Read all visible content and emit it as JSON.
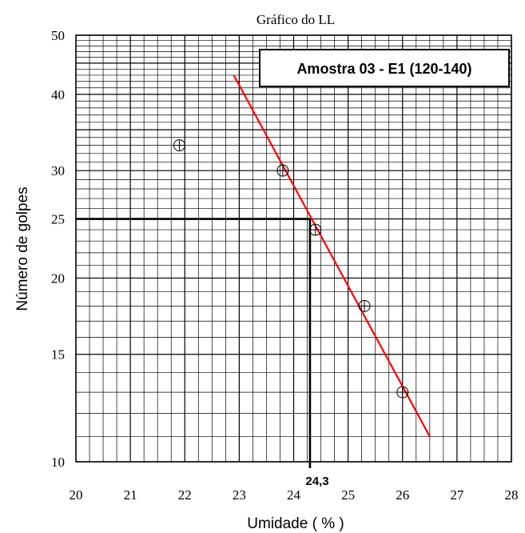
{
  "chart_data": {
    "type": "scatter",
    "title": "Gráfico do LL",
    "xlabel": "Umidade ( % )",
    "ylabel": "Número de golpes",
    "xlim": [
      20,
      28
    ],
    "ylim": [
      10,
      50
    ],
    "yscale": "log",
    "x_ticks": [
      "20",
      "21",
      "22",
      "23",
      "24",
      "25",
      "26",
      "27",
      "28"
    ],
    "y_ticks": [
      "10",
      "15",
      "20",
      "25",
      "30",
      "40",
      "50"
    ],
    "grid": true,
    "series": [
      {
        "name": "Amostra 03 - E1 (120-140)",
        "marker": "circle-cross",
        "points": [
          {
            "x": 21.9,
            "y": 33
          },
          {
            "x": 23.8,
            "y": 30
          },
          {
            "x": 24.4,
            "y": 24
          },
          {
            "x": 25.3,
            "y": 18
          },
          {
            "x": 26.0,
            "y": 13
          }
        ]
      }
    ],
    "trendline": {
      "color": "#ff0000",
      "points": [
        {
          "x": 22.9,
          "y": 43
        },
        {
          "x": 26.5,
          "y": 11
        }
      ]
    },
    "reference": {
      "y": 25,
      "x": 24.3,
      "label": "24,3"
    },
    "legend_position": "top-right"
  }
}
